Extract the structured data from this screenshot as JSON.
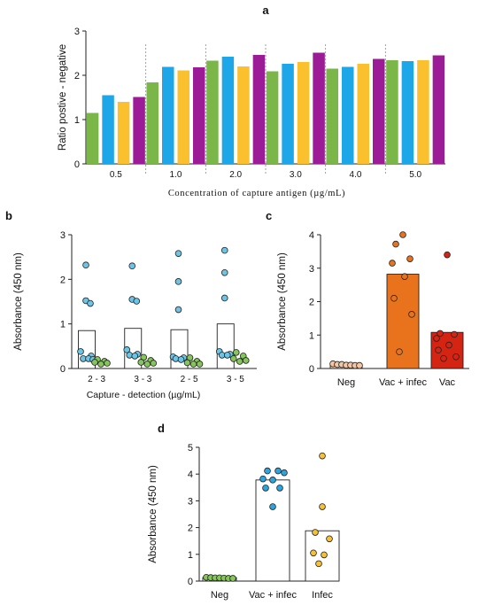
{
  "colors": {
    "green": "#7ab648",
    "blue": "#1ea7e8",
    "yellow": "#fbc02d",
    "purple": "#9c1b97",
    "cyan_dot": "#6cc5e6",
    "green_dot": "#84c65a",
    "peach_dot": "#f4c6a3",
    "orange": "#e8731c",
    "red": "#d62412",
    "blue_dot": "#2aa5e0",
    "yellow_dot": "#f5c03a"
  },
  "chart_data": [
    {
      "panel": "a",
      "type": "bar",
      "ylabel": "Ratio postive - negative",
      "xlabel": "Concentration of capture antigen (µg/mL)",
      "ylim": [
        0,
        3
      ],
      "yticks": [
        "0",
        "1",
        "2",
        "3"
      ],
      "categories": [
        "0.5",
        "1.0",
        "2.0",
        "3.0",
        "4.0",
        "5.0"
      ],
      "series": [
        {
          "color": "green",
          "values": [
            1.15,
            1.84,
            2.33,
            2.09,
            2.15,
            2.34
          ]
        },
        {
          "color": "blue",
          "values": [
            1.55,
            2.19,
            2.42,
            2.26,
            2.19,
            2.32
          ]
        },
        {
          "color": "yellow",
          "values": [
            1.4,
            2.11,
            2.2,
            2.3,
            2.26,
            2.34
          ]
        },
        {
          "color": "purple",
          "values": [
            1.51,
            2.18,
            2.46,
            2.51,
            2.37,
            2.45
          ]
        }
      ]
    },
    {
      "panel": "b",
      "type": "bar",
      "ylabel": "Absorbance (450 nm)",
      "xlabel": "Capture - detection (µg/mL)",
      "ylim": [
        0,
        3
      ],
      "yticks": [
        "0",
        "1",
        "2",
        "3"
      ],
      "categories": [
        "2 - 3",
        "3 - 3",
        "2 - 5",
        "3 - 5"
      ],
      "bars": [
        0.85,
        0.9,
        0.87,
        1.0
      ],
      "positive_points": [
        [
          2.32,
          1.52,
          1.46,
          0.38,
          0.28,
          0.22,
          0.22,
          0.2
        ],
        [
          2.3,
          1.55,
          1.51,
          0.42,
          0.32,
          0.3,
          0.28
        ],
        [
          2.58,
          1.95,
          1.32,
          0.26,
          0.24,
          0.22,
          0.2
        ],
        [
          2.65,
          2.15,
          1.58,
          0.38,
          0.32,
          0.3,
          0.3
        ]
      ],
      "negative_points": [
        [
          0.2,
          0.16,
          0.14,
          0.12,
          0.1
        ],
        [
          0.25,
          0.18,
          0.14,
          0.12,
          0.1
        ],
        [
          0.24,
          0.16,
          0.13,
          0.1,
          0.1
        ],
        [
          0.36,
          0.28,
          0.22,
          0.18,
          0.16
        ]
      ]
    },
    {
      "panel": "c",
      "type": "bar",
      "ylabel": "Absorbance (450 nm)",
      "ylim": [
        0,
        4
      ],
      "yticks": [
        "0",
        "1",
        "2",
        "3",
        "4"
      ],
      "categories": [
        "Neg",
        "Vac + infec",
        "Vac"
      ],
      "values": [
        0.13,
        2.82,
        1.08
      ],
      "bar_colors": [
        "peach_dot",
        "orange",
        "red"
      ],
      "points": [
        [
          0.14,
          0.12,
          0.12,
          0.1,
          0.1,
          0.09,
          0.09
        ],
        [
          4.0,
          3.72,
          3.28,
          3.15,
          2.75,
          2.1,
          1.62,
          0.5
        ],
        [
          3.4,
          1.05,
          1.02,
          0.9,
          0.7,
          0.55,
          0.35,
          0.3
        ]
      ]
    },
    {
      "panel": "d",
      "type": "bar",
      "ylabel": "Absorbance (450 nm)",
      "ylim": [
        0,
        5
      ],
      "yticks": [
        "0",
        "1",
        "2",
        "3",
        "4",
        "5"
      ],
      "categories": [
        "Neg",
        "Vac + infec",
        "Infec"
      ],
      "values": [
        0.13,
        3.78,
        1.88
      ],
      "points": [
        [
          0.14,
          0.13,
          0.12,
          0.12,
          0.11,
          0.1,
          0.1
        ],
        [
          4.12,
          4.12,
          4.05,
          3.82,
          3.78,
          3.48,
          3.48,
          2.78
        ],
        [
          4.68,
          2.78,
          1.82,
          1.58,
          1.05,
          0.98,
          0.65
        ]
      ]
    }
  ],
  "panels": {
    "a": {
      "letter": "a"
    },
    "b": {
      "letter": "b"
    },
    "c": {
      "letter": "c"
    },
    "d": {
      "letter": "d"
    }
  }
}
